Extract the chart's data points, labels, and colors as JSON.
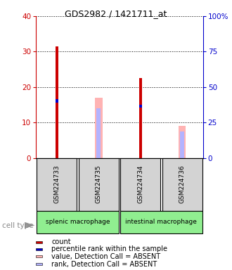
{
  "title": "GDS2982 / 1421711_at",
  "samples": [
    "GSM224733",
    "GSM224735",
    "GSM224734",
    "GSM224736"
  ],
  "count_values": [
    31.5,
    0,
    22.5,
    0
  ],
  "rank_values": [
    16.5,
    0,
    15.0,
    0
  ],
  "absent_value_values": [
    0,
    17.0,
    0,
    9.0
  ],
  "absent_rank_values": [
    0,
    14.0,
    0,
    7.5
  ],
  "ylim": [
    0,
    40
  ],
  "yticks_left": [
    0,
    10,
    20,
    30,
    40
  ],
  "yticks_right": [
    0,
    25,
    50,
    75,
    100
  ],
  "ylabel_left_color": "#cc0000",
  "ylabel_right_color": "#0000cc",
  "count_color": "#cc0000",
  "rank_color": "#0000cc",
  "absent_value_color": "#ffb3b3",
  "absent_rank_color": "#b3b3ff",
  "bg_label": "#d3d3d3",
  "bg_celltype": "#90ee90",
  "legend_items": [
    {
      "color": "#cc0000",
      "label": "count"
    },
    {
      "color": "#0000cc",
      "label": "percentile rank within the sample"
    },
    {
      "color": "#ffb3b3",
      "label": "value, Detection Call = ABSENT"
    },
    {
      "color": "#b3b3ff",
      "label": "rank, Detection Call = ABSENT"
    }
  ]
}
